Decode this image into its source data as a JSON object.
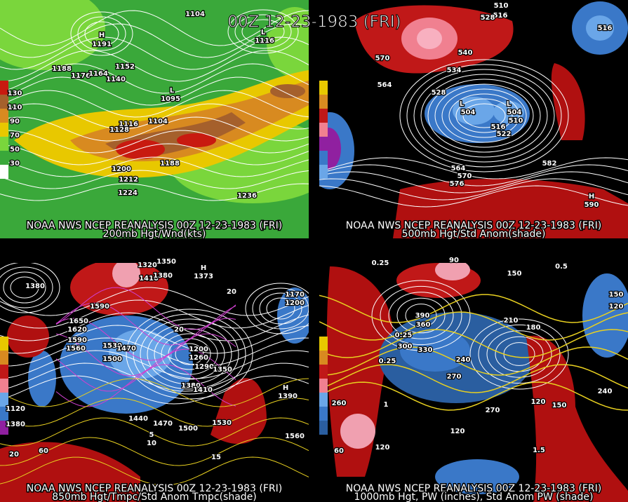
{
  "header": {
    "title": "00Z 12-23-1983 (FRI)"
  },
  "panels": [
    {
      "caption": "NOAA NWS NCEP REANALYSIS 00Z 12-23-1983 (FRI)",
      "subtitle": "200mb Hgt/Wnd(kts)",
      "colorbar": [
        "130",
        "110",
        "90",
        "70",
        "50",
        "30"
      ],
      "labels": [
        "1104",
        "H",
        "1191",
        "L",
        "1116",
        "1188",
        "1176",
        "1164",
        "1152",
        "1140",
        "L",
        "1095",
        "1104",
        "1116",
        "1128",
        "1200",
        "1188",
        "1212",
        "1224",
        "1236"
      ]
    },
    {
      "caption": "NOAA NWS NCEP REANALYSIS 00Z 12-23-1983 (FRI)",
      "subtitle": "500mb Hgt/Std Anom(shade)",
      "colorbar": [],
      "labels": [
        "510",
        "516",
        "528",
        "540",
        "534",
        "570",
        "564",
        "528",
        "L",
        "504",
        "L",
        "504",
        "510",
        "516",
        "522",
        "564",
        "570",
        "576",
        "582",
        "H",
        "590",
        "516"
      ]
    },
    {
      "caption": "NOAA NWS NCEP REANALYSIS 00Z 12-23-1983 (FRI)",
      "subtitle": "850mb Hgt/Tmpc/Std Anom Tmpc(shade)",
      "colorbar": [],
      "labels": [
        "1380",
        "1320",
        "1350",
        "1410",
        "1380",
        "H",
        "1373",
        "1590",
        "1650",
        "1620",
        "1590",
        "1560",
        "1530",
        "1470",
        "1500",
        "1200",
        "1260",
        "1290",
        "1350",
        "1380",
        "1410",
        "1470",
        "1500",
        "1530",
        "1440",
        "1560",
        "1170",
        "1200",
        "H",
        "1390",
        "1120",
        "1380",
        "5",
        "10",
        "15",
        "20",
        "60",
        "20",
        "20"
      ]
    },
    {
      "caption": "NOAA NWS NCEP REANALYSIS 00Z 12-23-1983 (FRI)",
      "subtitle": "1000mb Hgt, PW (inches), Std Anom PW (shade)",
      "colorbar": [],
      "labels": [
        "0.25",
        "90",
        "150",
        "0.5",
        "390",
        "360",
        "210",
        "180",
        "300",
        "330",
        "240",
        "270",
        "0.25",
        "0.25",
        "260",
        "270",
        "120",
        "120",
        "150",
        "120",
        "240",
        "1.5",
        "1",
        "60",
        "150",
        "120"
      ]
    }
  ]
}
